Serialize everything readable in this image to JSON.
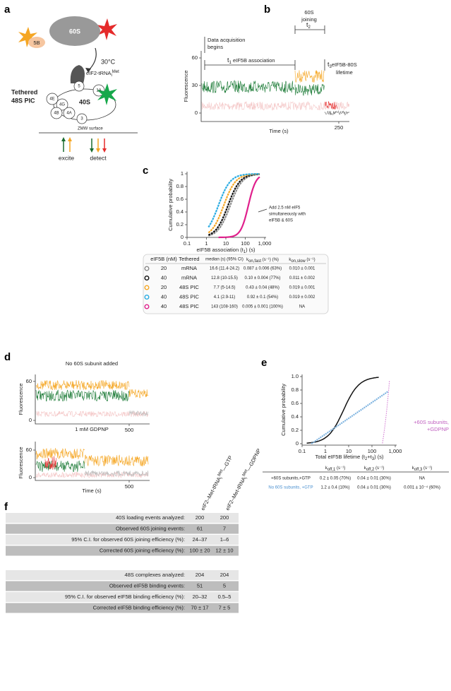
{
  "a": {
    "label": "a",
    "ribosome": "60S",
    "factor": "5B",
    "temperature": "30°C",
    "trna": "eIF2-tRNA",
    "trna_sub": "i",
    "trna_sup": "Met",
    "pic_line1": "Tethered",
    "pic_line2": "48S PIC",
    "subunit": "40S",
    "factors": [
      "5",
      "1A",
      "4E",
      "4G",
      "4A",
      "4B",
      "3"
    ],
    "surface": "ZMW surface",
    "excite": "excite",
    "detect": "detect"
  },
  "b": {
    "label": "b",
    "y_axis": "Fluorescence",
    "x_axis": "Time (s)",
    "yticks": [
      0,
      30,
      60
    ],
    "xticks": [
      250
    ],
    "acq1": "Data acquisition",
    "acq2": "begins",
    "t1": "t",
    "t1_sub": "1",
    "t1_text": " eIF5B association",
    "join1": "60S",
    "join2": "joining",
    "t2": "t",
    "t2_sub": "2",
    "t3": "t",
    "t3_sub": "3",
    "t3_text": "eIF5B-80S",
    "t3_text2": "lifetime"
  },
  "c": {
    "label": "c",
    "y_axis": "Cumulative probability",
    "x_axis": "eIF5B association (t",
    "x_axis_sub": "1",
    "x_axis_end": ") (s)",
    "yticks": [
      0,
      0.2,
      0.4,
      0.6,
      0.8,
      1
    ],
    "xticks": [
      0.1,
      1,
      10,
      100,
      {
        "value": 1000,
        "label": "1,000"
      }
    ],
    "note": [
      "Add 2.5 nM eIF5",
      "simultaneously with",
      "eIF5B & 60S"
    ],
    "table": {
      "header": [
        "eIF5B (nM)",
        "Tethered",
        "median (s) (95% CI)",
        {
          "k": "k",
          "sub": "on,fast",
          "rest": " (s⁻¹) (%)"
        },
        {
          "k": "k",
          "sub": "on,slow",
          "rest": " (s⁻¹)"
        }
      ],
      "colors": [
        "#8a8a8a",
        "#111111",
        "#f5a623",
        "#29abe2",
        "#e0208c"
      ],
      "rows": [
        [
          20,
          "mRNA",
          "16.6 (11.4-24.2)",
          "0.087 ± 0.006 (63%)",
          "0.010 ± 0.001"
        ],
        [
          40,
          "mRNA",
          "12.8 (10-15.5)",
          "0.10 ± 0.004 (77%)",
          "0.011 ± 0.002"
        ],
        [
          20,
          "48S PIC",
          "7.7 (5-14.5)",
          "0.43 ± 0.04 (48%)",
          "0.019 ± 0.001"
        ],
        [
          40,
          "48S PIC",
          "4.1 (2.9-11)",
          "0.92 ± 0.1 (54%)",
          "0.019 ± 0.002"
        ],
        [
          40,
          "48S PIC",
          "143 (108-160)",
          "0.005 ± 0.001 (100%)",
          "NA"
        ]
      ]
    }
  },
  "d": {
    "label": "d",
    "top_title": "No 60S subunit added",
    "bottom_title": "1 mM GDPNP",
    "y_axis": "Fluorescence",
    "x_axis": "Time (s)",
    "yticks": [
      0,
      60
    ],
    "xticks": [
      500
    ]
  },
  "e": {
    "label": "e",
    "y_axis": "Cumulative probability",
    "x_axis": "Total eIF5B lifetime (t",
    "x_axis_sub1": "2",
    "x_axis_mid": "+t",
    "x_axis_sub2": "3",
    "x_axis_end": ") (s)",
    "yticks": [
      0,
      0.2,
      0.4,
      0.6,
      0.8,
      {
        "value": 1,
        "label": "1.0"
      }
    ],
    "xticks": [
      0.1,
      1,
      10,
      100,
      {
        "value": 1000,
        "label": "1,000"
      }
    ],
    "legend": [
      "+60S subunits,",
      "+GDPNP"
    ],
    "table": {
      "header": [
        "",
        {
          "k": "k",
          "sub": "off,1",
          "rest": " (s⁻¹)"
        },
        {
          "k": "k",
          "sub": "off,2",
          "rest": " (s⁻¹)"
        },
        {
          "k": "k",
          "sub": "off,3",
          "rest": " (s⁻¹)"
        }
      ],
      "rows": [
        [
          "+60S subunits,+GTP",
          "0.2 ± 0.05 (70%)",
          "0.04 ± 0.01 (30%)",
          "NA"
        ],
        [
          "No 60S subunits, +GTP",
          "1.2 ± 0.4 (10%)",
          "0.04 ± 0.01 (30%)",
          "0.001 ± 10⁻⁴ (60%)"
        ]
      ]
    }
  },
  "f": {
    "label": "f",
    "columns": [
      {
        "a": "eIF2–Met-tRNA",
        "sub": "i",
        "sup": "Met",
        "b": "—GTP"
      },
      {
        "a": "eIF2–Met-tRNA",
        "sub": "i",
        "sup": "Met",
        "b": "—GDPNP"
      }
    ],
    "table1": [
      [
        "40S loading events analyzed:",
        "200",
        "200"
      ],
      [
        "Observed 60S joining events:",
        "61",
        "7"
      ],
      [
        "95% C.I. for observed 60S joining efficiency (%):",
        "24–37",
        "1–6"
      ],
      [
        "Corrected 60S joining efficiency (%):",
        "100 ± 20",
        "12 ± 10"
      ]
    ],
    "table2": [
      [
        "48S complexes analyzed:",
        "204",
        "204"
      ],
      [
        "Observed eIF5B binding events:",
        "51",
        "5"
      ],
      [
        "95% C.I. for observed eIF5B binding efficiency (%):",
        "20–32",
        "0.5–5"
      ],
      [
        "Corrected eIF5B binding efficiency (%):",
        "70 ± 17",
        "7 ± 5"
      ]
    ]
  }
}
